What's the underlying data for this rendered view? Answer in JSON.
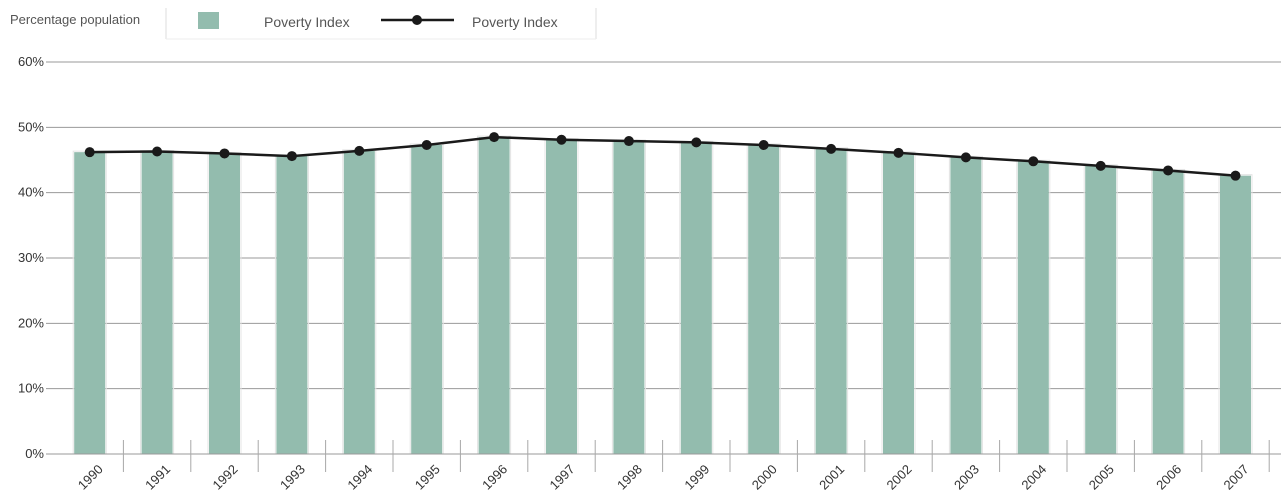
{
  "chart_data": {
    "type": "bar",
    "ylabel": "Percentage population",
    "categories": [
      "1990",
      "1991",
      "1992",
      "1993",
      "1994",
      "1995",
      "1996",
      "1997",
      "1998",
      "1999",
      "2000",
      "2001",
      "2002",
      "2003",
      "2004",
      "2005",
      "2006",
      "2007"
    ],
    "ylim": [
      0,
      60
    ],
    "yticks": [
      "0%",
      "10%",
      "20%",
      "30%",
      "40%",
      "50%",
      "60%"
    ],
    "grid": true,
    "legend_position": "top-left",
    "series": [
      {
        "name": "Poverty Index",
        "kind": "bar",
        "color": "#93bcae",
        "values": [
          46.2,
          46.3,
          46.0,
          45.6,
          46.4,
          47.3,
          48.5,
          48.1,
          47.9,
          47.7,
          47.3,
          46.7,
          46.1,
          45.4,
          44.8,
          44.1,
          43.4,
          42.6
        ]
      },
      {
        "name": "Poverty Index",
        "kind": "line",
        "color": "#1a1a1a",
        "values": [
          46.2,
          46.3,
          46.0,
          45.6,
          46.4,
          47.3,
          48.5,
          48.1,
          47.9,
          47.7,
          47.3,
          46.7,
          46.1,
          45.4,
          44.8,
          44.1,
          43.4,
          42.6
        ]
      }
    ]
  }
}
